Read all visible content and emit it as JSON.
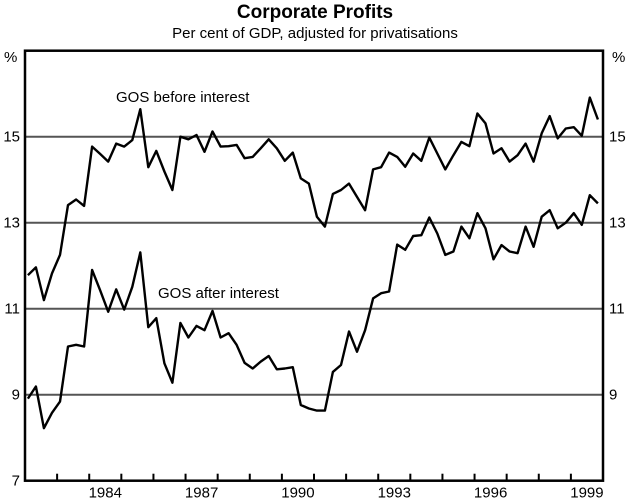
{
  "chart_data": {
    "type": "line",
    "title": "Corporate Profits",
    "subtitle": "Per cent of GDP, adjusted for privatisations",
    "ylabel_left": "%",
    "ylabel_right": "%",
    "x_start": "1982Q1",
    "x_frequency": "quarterly",
    "xlim": [
      1982,
      2000
    ],
    "ylim": [
      7,
      17
    ],
    "x_tick_labels": [
      "1984",
      "1987",
      "1990",
      "1993",
      "1996",
      "1999"
    ],
    "y_tick_labels_left": [
      "7",
      "9",
      "11",
      "13",
      "15"
    ],
    "y_tick_labels_right": [
      "9",
      "11",
      "13",
      "15"
    ],
    "y_gridlines": [
      9,
      11,
      13,
      15
    ],
    "grid": true,
    "colors": {
      "line": "#000000",
      "grid": "#555555"
    },
    "series": [
      {
        "name": "GOS before interest",
        "values": [
          11.78,
          11.96,
          11.2,
          11.82,
          12.25,
          13.41,
          13.54,
          13.39,
          14.77,
          14.6,
          14.42,
          14.84,
          14.77,
          14.92,
          15.64,
          14.29,
          14.67,
          14.19,
          13.76,
          15.0,
          14.94,
          15.04,
          14.65,
          15.12,
          14.77,
          14.78,
          14.81,
          14.5,
          14.53,
          14.73,
          14.94,
          14.73,
          14.44,
          14.63,
          14.03,
          13.91,
          13.14,
          12.91,
          13.67,
          13.76,
          13.91,
          13.6,
          13.29,
          14.24,
          14.29,
          14.63,
          14.53,
          14.3,
          14.61,
          14.44,
          14.98,
          14.61,
          14.24,
          14.57,
          14.88,
          14.78,
          15.54,
          15.31,
          14.61,
          14.73,
          14.42,
          14.57,
          14.84,
          14.42,
          15.08,
          15.48,
          14.96,
          15.19,
          15.22,
          15.02,
          15.91,
          15.4
        ]
      },
      {
        "name": "GOS after interest",
        "values": [
          8.91,
          9.19,
          8.22,
          8.58,
          8.84,
          10.12,
          10.16,
          10.12,
          11.9,
          11.43,
          10.93,
          11.45,
          10.98,
          11.51,
          12.31,
          10.57,
          10.78,
          9.73,
          9.28,
          10.67,
          10.33,
          10.6,
          10.5,
          10.95,
          10.33,
          10.43,
          10.16,
          9.74,
          9.61,
          9.77,
          9.9,
          9.59,
          9.61,
          9.64,
          8.76,
          8.68,
          8.63,
          8.63,
          9.53,
          9.69,
          10.47,
          10.0,
          10.5,
          11.24,
          11.36,
          11.4,
          12.49,
          12.37,
          12.69,
          12.71,
          13.12,
          12.75,
          12.25,
          12.33,
          12.91,
          12.64,
          13.22,
          12.87,
          12.15,
          12.48,
          12.33,
          12.29,
          12.91,
          12.44,
          13.14,
          13.29,
          12.87,
          13.0,
          13.22,
          12.95,
          13.64,
          13.45
        ]
      }
    ]
  }
}
